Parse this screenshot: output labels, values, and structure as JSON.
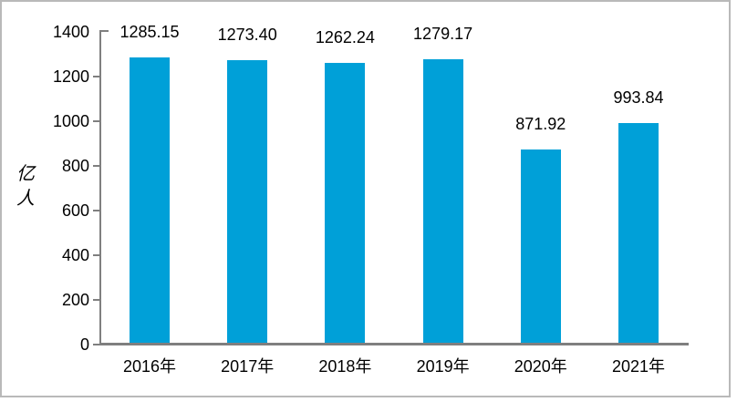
{
  "chart_data": {
    "type": "bar",
    "title": "",
    "categories": [
      "2016年",
      "2017年",
      "2018年",
      "2019年",
      "2020年",
      "2021年"
    ],
    "values": [
      1285.15,
      1273.4,
      1262.24,
      1279.17,
      871.92,
      993.84
    ],
    "value_labels": [
      "1285.15",
      "1273.40",
      "1262.24",
      "1279.17",
      "871.92",
      "993.84"
    ],
    "xlabel": "",
    "ylabel": "亿人",
    "ylim": [
      0,
      1400
    ],
    "yticks": [
      0,
      200,
      400,
      600,
      800,
      1000,
      1200,
      1400
    ],
    "grid": "off",
    "legend": "none",
    "bar_color": "#00A0D8",
    "bar_bottom_edge_color": "#17567d",
    "axis_color": "#7f7f7f",
    "text_color": "#000000",
    "frame_border_color": "#b9b9b9",
    "background_color": "#ffffff"
  }
}
